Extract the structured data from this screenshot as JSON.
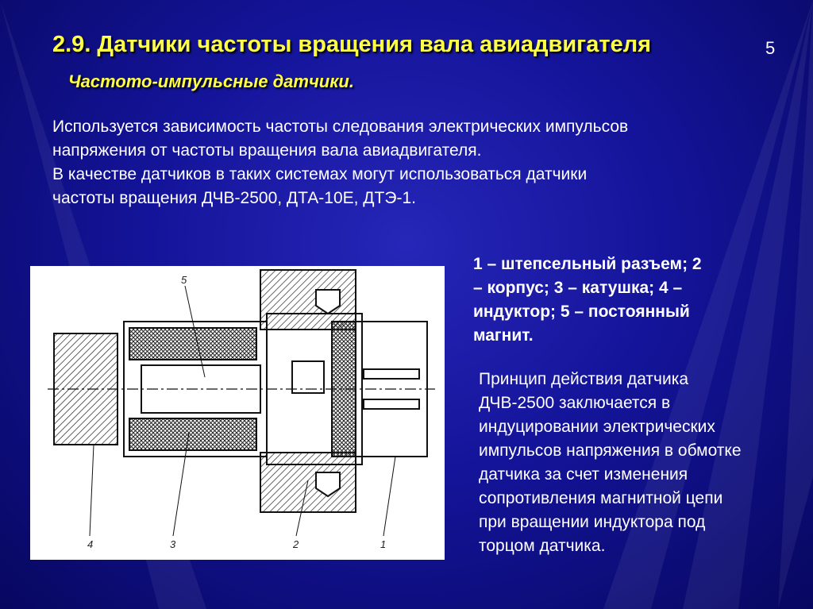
{
  "header": {
    "title": "2.9. Датчики частоты вращения вала авиадвигателя",
    "slide_number": "5",
    "subtitle": "Частото-импульсные датчики."
  },
  "intro": [
    "Используется зависимость частоты следования электрических импульсов",
    "напряжения от частоты вращения вала авиадвигателя.",
    "В качестве датчиков в таких системах могут использоваться датчики",
    "частоты вращения ДЧВ-2500, ДТА-10Е, ДТЭ-1."
  ],
  "figure": {
    "labels": [
      "4",
      "3",
      "2",
      "1",
      "5"
    ]
  },
  "caption": [
    "1 – штепсельный разъем; 2",
    "– корпус; 3 – катушка; 4 –",
    "индуктор; 5 – постоянный",
    "магнит."
  ],
  "description": [
    "Принцип действия датчика",
    "ДЧВ-2500 заключается в",
    "индуцировании электрических",
    "импульсов напряжения в обмотке",
    "датчика за счет изменения",
    "сопротивления магнитной цепи",
    "при вращении индуктора под",
    "торцом датчика."
  ]
}
